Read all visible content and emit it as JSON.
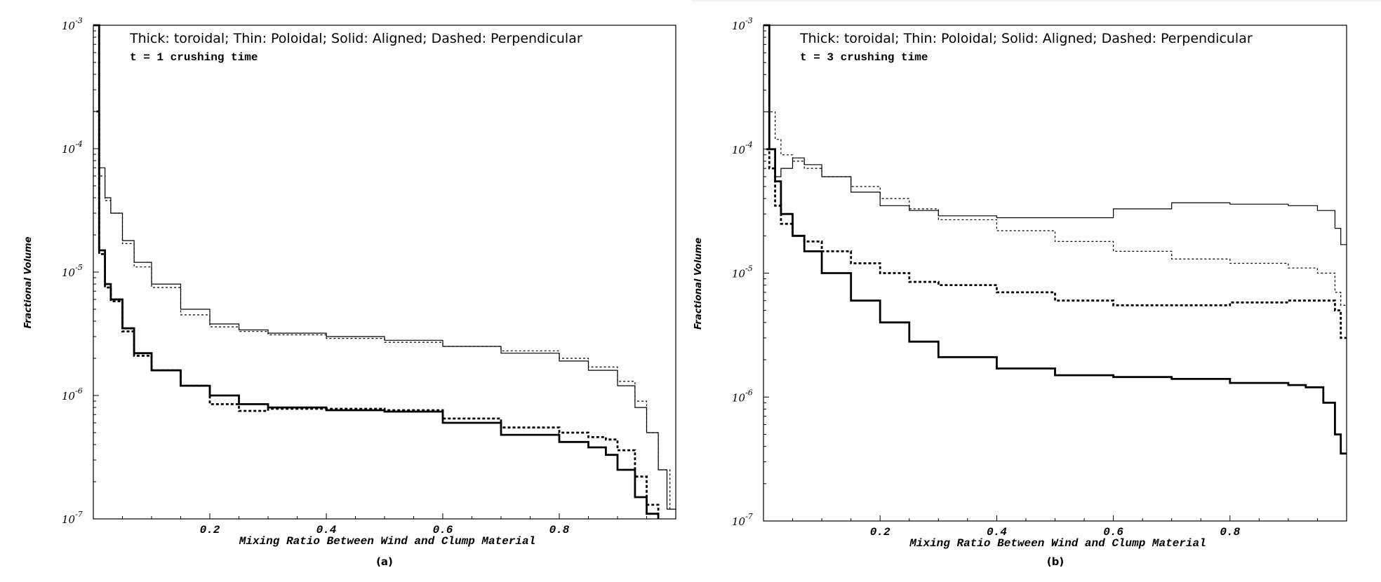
{
  "chart_data": [
    {
      "panel": "(a)",
      "type": "line",
      "title": "Thick: toroidal; Thin: Poloidal; Solid: Aligned; Dashed: Perpendicular",
      "subtitle": "t = 1 crushing time",
      "xlabel": "Mixing Ratio Between Wind and Clump Material",
      "ylabel": "Fractional Volume",
      "xlim": [
        0,
        1
      ],
      "ylim": [
        1e-07,
        0.001
      ],
      "yscale": "log",
      "xticks": [
        "0.2",
        "0.4",
        "0.6",
        "0.8"
      ],
      "yticks": [
        {
          "base": "10",
          "exp": "-3"
        },
        {
          "base": "10",
          "exp": "-4"
        },
        {
          "base": "10",
          "exp": "-5"
        },
        {
          "base": "10",
          "exp": "-6"
        },
        {
          "base": "10",
          "exp": "-7"
        }
      ],
      "series": [
        {
          "name": "Poloidal, Aligned",
          "style": "thin-solid",
          "x": [
            0.0,
            0.005,
            0.01,
            0.02,
            0.03,
            0.05,
            0.07,
            0.1,
            0.15,
            0.2,
            0.25,
            0.3,
            0.4,
            0.5,
            0.6,
            0.7,
            0.8,
            0.85,
            0.9,
            0.93,
            0.95,
            0.97,
            0.985,
            1.0
          ],
          "y": [
            0.001,
            0.001,
            7e-05,
            4e-05,
            3e-05,
            1.8e-05,
            1.2e-05,
            8e-06,
            5e-06,
            3.8e-06,
            3.4e-06,
            3.2e-06,
            3e-06,
            2.8e-06,
            2.5e-06,
            2.2e-06,
            1.9e-06,
            1.6e-06,
            1.2e-06,
            8e-07,
            5e-07,
            2.5e-07,
            1.2e-07,
            1.2e-07
          ]
        },
        {
          "name": "Poloidal, Perpendicular",
          "style": "thin-dashed",
          "x": [
            0.0,
            0.01,
            0.02,
            0.03,
            0.05,
            0.07,
            0.1,
            0.15,
            0.2,
            0.25,
            0.3,
            0.4,
            0.5,
            0.6,
            0.7,
            0.8,
            0.85,
            0.9,
            0.93,
            0.95,
            0.97,
            0.99
          ],
          "y": [
            0.0002,
            6e-05,
            3.8e-05,
            3e-05,
            1.7e-05,
            1.1e-05,
            7.5e-06,
            4.5e-06,
            3.6e-06,
            3.3e-06,
            3.1e-06,
            2.9e-06,
            2.7e-06,
            2.5e-06,
            2.3e-06,
            2e-06,
            1.7e-06,
            1.3e-06,
            9e-07,
            5e-07,
            2.5e-07,
            1.2e-07
          ]
        },
        {
          "name": "Toroidal, Aligned",
          "style": "thick-solid",
          "x": [
            0.0,
            0.005,
            0.01,
            0.02,
            0.03,
            0.05,
            0.07,
            0.1,
            0.15,
            0.2,
            0.25,
            0.3,
            0.4,
            0.5,
            0.6,
            0.7,
            0.8,
            0.85,
            0.88,
            0.9,
            0.93,
            0.95,
            0.97
          ],
          "y": [
            0.001,
            0.001,
            1.5e-05,
            8e-06,
            6e-06,
            3.5e-06,
            2.2e-06,
            1.6e-06,
            1.2e-06,
            1e-06,
            8.5e-07,
            8e-07,
            7.6e-07,
            7.4e-07,
            6e-07,
            4.8e-07,
            4.2e-07,
            3.8e-07,
            3.3e-07,
            2.5e-07,
            1.5e-07,
            1.1e-07,
            1e-07
          ]
        },
        {
          "name": "Toroidal, Perpendicular",
          "style": "thick-dashed",
          "x": [
            0.005,
            0.01,
            0.02,
            0.03,
            0.05,
            0.07,
            0.1,
            0.15,
            0.2,
            0.25,
            0.3,
            0.4,
            0.5,
            0.6,
            0.7,
            0.8,
            0.85,
            0.88,
            0.9,
            0.93,
            0.95,
            0.97
          ],
          "y": [
            0.0002,
            1.4e-05,
            7.5e-06,
            5.8e-06,
            3.3e-06,
            2.1e-06,
            1.6e-06,
            1.2e-06,
            8.5e-07,
            7.5e-07,
            7.8e-07,
            7.8e-07,
            7.6e-07,
            6.5e-07,
            5.5e-07,
            5e-07,
            4.6e-07,
            4.4e-07,
            3.6e-07,
            2.2e-07,
            1.3e-07,
            1e-07
          ]
        }
      ]
    },
    {
      "panel": "(b)",
      "type": "line",
      "title": "Thick: toroidal; Thin: Poloidal; Solid: Aligned; Dashed: Perpendicular",
      "subtitle": "t = 3 crushing time",
      "xlabel": "Mixing Ratio Between Wind and Clump Material",
      "ylabel": "Fractional Volume",
      "xlim": [
        0,
        1
      ],
      "ylim": [
        1e-07,
        0.001
      ],
      "yscale": "log",
      "xticks": [
        "0.2",
        "0.4",
        "0.6",
        "0.8"
      ],
      "yticks": [
        {
          "base": "10",
          "exp": "-3"
        },
        {
          "base": "10",
          "exp": "-4"
        },
        {
          "base": "10",
          "exp": "-5"
        },
        {
          "base": "10",
          "exp": "-6"
        },
        {
          "base": "10",
          "exp": "-7"
        }
      ],
      "series": [
        {
          "name": "Poloidal, Aligned",
          "style": "thin-solid",
          "x": [
            0.0,
            0.005,
            0.01,
            0.02,
            0.03,
            0.05,
            0.07,
            0.1,
            0.15,
            0.2,
            0.25,
            0.3,
            0.4,
            0.5,
            0.6,
            0.7,
            0.8,
            0.9,
            0.95,
            0.98,
            0.99,
            1.0
          ],
          "y": [
            0.001,
            0.001,
            0.0001,
            6e-05,
            7e-05,
            8.5e-05,
            7.5e-05,
            6e-05,
            4.5e-05,
            3.5e-05,
            3.2e-05,
            2.9e-05,
            2.8e-05,
            2.8e-05,
            3.3e-05,
            3.7e-05,
            3.6e-05,
            3.5e-05,
            3.2e-05,
            2.3e-05,
            1.7e-05,
            1.7e-05
          ]
        },
        {
          "name": "Poloidal, Perpendicular",
          "style": "thin-dashed",
          "x": [
            0.005,
            0.01,
            0.02,
            0.03,
            0.05,
            0.07,
            0.1,
            0.15,
            0.2,
            0.25,
            0.3,
            0.4,
            0.5,
            0.6,
            0.7,
            0.8,
            0.9,
            0.95,
            0.98,
            0.99,
            1.0
          ],
          "y": [
            0.0002,
            0.0002,
            0.00012,
            9e-05,
            8e-05,
            7e-05,
            6e-05,
            5e-05,
            4e-05,
            3.3e-05,
            2.7e-05,
            2.2e-05,
            1.8e-05,
            1.5e-05,
            1.3e-05,
            1.2e-05,
            1.1e-05,
            1e-05,
            7e-06,
            5.5e-06,
            5.5e-06
          ]
        },
        {
          "name": "Toroidal, Aligned",
          "style": "thick-solid",
          "x": [
            0.0,
            0.005,
            0.01,
            0.02,
            0.03,
            0.05,
            0.07,
            0.1,
            0.15,
            0.2,
            0.25,
            0.3,
            0.4,
            0.5,
            0.6,
            0.7,
            0.8,
            0.9,
            0.93,
            0.96,
            0.98,
            0.99,
            1.0
          ],
          "y": [
            0.001,
            0.001,
            0.0001,
            5.5e-05,
            3e-05,
            2e-05,
            1.5e-05,
            1e-05,
            6e-06,
            4e-06,
            2.8e-06,
            2.1e-06,
            1.7e-06,
            1.5e-06,
            1.45e-06,
            1.4e-06,
            1.3e-06,
            1.25e-06,
            1.2e-06,
            9e-07,
            5e-07,
            3.5e-07,
            3.5e-07
          ]
        },
        {
          "name": "Toroidal, Perpendicular",
          "style": "thick-dashed",
          "x": [
            0.005,
            0.01,
            0.02,
            0.03,
            0.05,
            0.07,
            0.1,
            0.15,
            0.2,
            0.25,
            0.3,
            0.4,
            0.5,
            0.6,
            0.7,
            0.8,
            0.9,
            0.95,
            0.98,
            0.99,
            1.0
          ],
          "y": [
            0.0001,
            7e-05,
            3.5e-05,
            2.5e-05,
            2e-05,
            1.8e-05,
            1.5e-05,
            1.2e-05,
            1e-05,
            8.5e-06,
            8e-06,
            7e-06,
            6e-06,
            5.5e-06,
            5.5e-06,
            5.8e-06,
            6e-06,
            6e-06,
            5e-06,
            3e-06,
            3e-06
          ]
        }
      ]
    }
  ]
}
